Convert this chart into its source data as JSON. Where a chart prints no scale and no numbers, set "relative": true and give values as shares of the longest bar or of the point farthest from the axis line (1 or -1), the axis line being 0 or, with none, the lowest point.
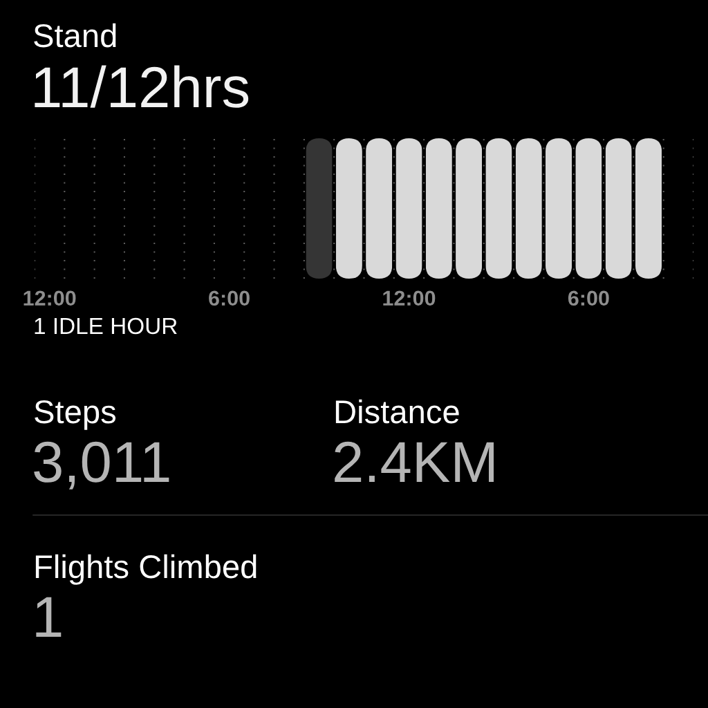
{
  "chart_data": [
    {
      "type": "bar",
      "title": "Stand",
      "subtitle": "11/12hrs",
      "annotations": [
        "1 IDLE HOUR"
      ],
      "categories": [
        "12:00",
        null,
        null,
        null,
        null,
        null,
        "6:00",
        null,
        null,
        null,
        null,
        null,
        "12:00",
        null,
        null,
        null,
        null,
        null,
        "6:00",
        null,
        null,
        null
      ],
      "values": [
        null,
        null,
        null,
        null,
        null,
        null,
        null,
        null,
        null,
        1,
        1,
        1,
        1,
        1,
        1,
        1,
        1,
        1,
        1,
        1,
        1,
        null
      ],
      "colors": [
        null,
        null,
        null,
        null,
        null,
        null,
        null,
        null,
        null,
        "#353535",
        "#d9d9d9",
        "#d9d9d9",
        "#d9d9d9",
        "#d9d9d9",
        "#d9d9d9",
        "#d9d9d9",
        "#d9d9d9",
        "#d9d9d9",
        "#d9d9d9",
        "#d9d9d9",
        "#d9d9d9",
        null
      ],
      "relative": true,
      "grid": "x"
    },
    {
      "type": "other",
      "annotations": [
        "Steps",
        "3,011",
        "Distance",
        "2.4KM",
        "Flights Climbed",
        "1"
      ]
    }
  ]
}
